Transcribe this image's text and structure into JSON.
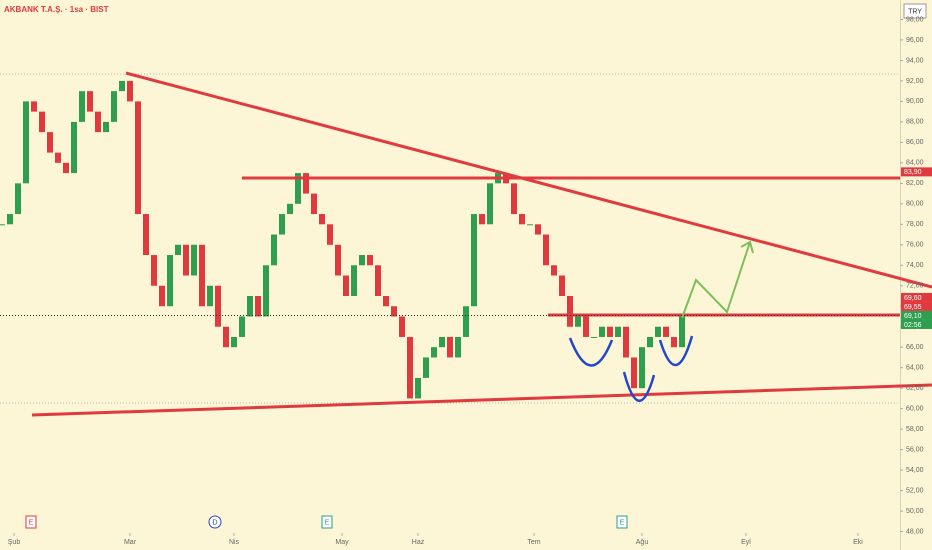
{
  "chart_data": {
    "type": "candlestick",
    "title": "AKBANK T.A.Ş. · 1sa · BIST",
    "currency": "TRY",
    "up_color": "#2e9e4f",
    "down_color": "#e0393e",
    "x": [
      -3,
      -1,
      1,
      3,
      5,
      7,
      9,
      11,
      13,
      15,
      17,
      19,
      21,
      23,
      25,
      27,
      29,
      31,
      33,
      35,
      37,
      39,
      41,
      43,
      45,
      47,
      49,
      51,
      53,
      55,
      57,
      59,
      61,
      63,
      65,
      67,
      69,
      71,
      73,
      75,
      77,
      79,
      81,
      83,
      85,
      87,
      89,
      91,
      93,
      95,
      97,
      99,
      101,
      103,
      105,
      107,
      109,
      111,
      113,
      115,
      117,
      119,
      121,
      123,
      125,
      127,
      129,
      131,
      133,
      135,
      137,
      139,
      141,
      143,
      145,
      147,
      149,
      151,
      153,
      155,
      157,
      159,
      161,
      163,
      165,
      167
    ],
    "values": [
      78,
      79,
      82,
      90,
      89,
      87,
      85,
      84,
      83,
      88,
      91,
      89,
      87,
      88,
      91,
      92,
      90,
      79,
      75,
      72,
      70,
      75,
      76,
      73,
      76,
      70,
      72,
      68,
      66,
      67,
      69,
      71,
      69,
      74,
      77,
      79,
      80,
      83,
      81,
      79,
      78,
      76,
      73,
      71,
      74,
      75,
      74,
      71,
      70,
      69,
      67,
      61,
      63,
      65,
      66,
      67,
      65,
      67,
      70,
      79,
      78,
      82,
      83,
      82,
      79,
      78,
      78,
      77,
      74,
      73,
      71,
      68,
      69,
      67,
      67,
      68,
      67,
      68,
      65,
      62,
      66,
      67,
      68,
      67,
      66,
      69.1
    ],
    "xlim": [
      -3.5,
      221.5
    ],
    "xticks": [
      {
        "value": 0,
        "label": "Şub"
      },
      {
        "value": 29,
        "label": "Mar"
      },
      {
        "value": 55,
        "label": "Nis"
      },
      {
        "value": 82,
        "label": "May"
      },
      {
        "value": 101,
        "label": "Haz"
      },
      {
        "value": 130,
        "label": "Tem"
      },
      {
        "value": 157,
        "label": "Ağu"
      },
      {
        "value": 183,
        "label": "Eyl"
      },
      {
        "value": 211,
        "label": "Eki"
      }
    ],
    "ylim": [
      46.2,
      99.9
    ],
    "yticks": [
      {
        "value": 48,
        "label": "48,00"
      },
      {
        "value": 50,
        "label": "50,00"
      },
      {
        "value": 52,
        "label": "52,00"
      },
      {
        "value": 54,
        "label": "54,00"
      },
      {
        "value": 56,
        "label": "56,00"
      },
      {
        "value": 58,
        "label": "58,00"
      },
      {
        "value": 60,
        "label": "60,00"
      },
      {
        "value": 62,
        "label": "62,00"
      },
      {
        "value": 64,
        "label": "64,00"
      },
      {
        "value": 66,
        "label": "66,00"
      },
      {
        "value": 68,
        "label": "68,00"
      },
      {
        "value": 70,
        "label": "70,00"
      },
      {
        "value": 72,
        "label": "72,00"
      },
      {
        "value": 74,
        "label": "74,00"
      },
      {
        "value": 76,
        "label": "76,00"
      },
      {
        "value": 78,
        "label": "78,00"
      },
      {
        "value": 80,
        "label": "80,00"
      },
      {
        "value": 82,
        "label": "82,00"
      },
      {
        "value": 84,
        "label": "84,00"
      },
      {
        "value": 86,
        "label": "86,00"
      },
      {
        "value": 88,
        "label": "88,00"
      },
      {
        "value": 90,
        "label": "90,00"
      },
      {
        "value": 92,
        "label": "92,00"
      },
      {
        "value": 94,
        "label": "94,00"
      },
      {
        "value": 96,
        "label": "96,00"
      },
      {
        "value": 98,
        "label": "98,00"
      }
    ],
    "price_badges": [
      {
        "value": 83.9,
        "label": "83,90",
        "color": "#e0393e"
      },
      {
        "value": 69.6,
        "label": "69,60",
        "color": "#e0393e"
      },
      {
        "value": 69.55,
        "label": "69,55",
        "color": "#e0393e"
      },
      {
        "value": 69.1,
        "label": "69,10",
        "color": "#2e9e4f"
      }
    ],
    "countdown": "02:56",
    "events": [
      "E",
      "D",
      "E",
      "E"
    ]
  }
}
